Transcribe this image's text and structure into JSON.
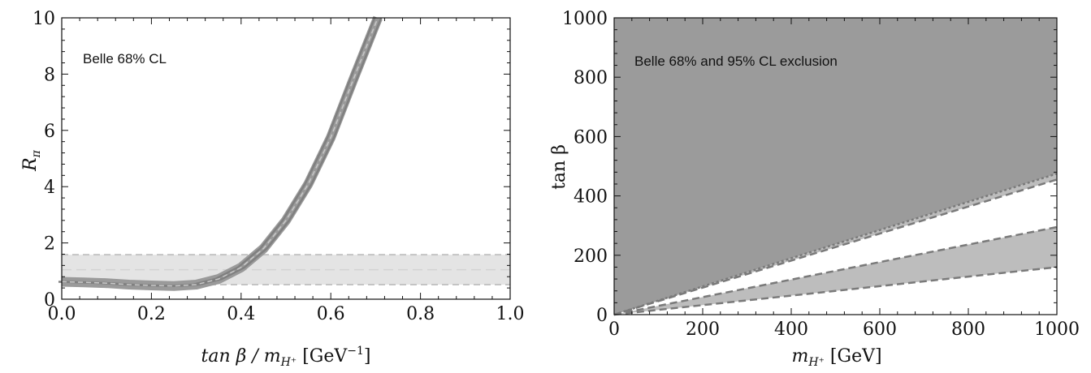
{
  "chart_data": [
    {
      "type": "line",
      "annotation": "Belle  68% CL",
      "xlabel": "tan β / m",
      "xlabel_sub": "H⁺",
      "xlabel_unit": " [GeV",
      "xlabel_unit_sup": "−1",
      "xlabel_close": "]",
      "ylabel": "R",
      "ylabel_sub": "π",
      "xlim": [
        0,
        1
      ],
      "ylim": [
        0,
        10
      ],
      "xticks": [
        "0.0",
        "0.2",
        "0.4",
        "0.6",
        "0.8",
        "1.0"
      ],
      "xtick_values": [
        0,
        0.2,
        0.4,
        0.6,
        0.8,
        1.0
      ],
      "yticks": [
        "0",
        "2",
        "4",
        "6",
        "8",
        "10"
      ],
      "ytick_values": [
        0,
        2,
        4,
        6,
        8,
        10
      ],
      "band": {
        "lower": 0.52,
        "central": 1.05,
        "upper": 1.58
      },
      "curve": {
        "x": [
          0.0,
          0.05,
          0.1,
          0.15,
          0.2,
          0.25,
          0.3,
          0.35,
          0.4,
          0.45,
          0.5,
          0.55,
          0.6,
          0.65,
          0.7,
          0.705
        ],
        "y": [
          0.62,
          0.6,
          0.57,
          0.52,
          0.49,
          0.47,
          0.52,
          0.72,
          1.13,
          1.8,
          2.8,
          4.1,
          5.75,
          7.8,
          9.8,
          10.0
        ],
        "band_width": 0.12
      },
      "colors": {
        "curve": "#808080",
        "curve_band": "#9a9a9a",
        "band_fill": "#e4e4e4",
        "band_edge": "#c4c4c4",
        "central_dash": "#d2d2d2"
      }
    },
    {
      "type": "area",
      "annotation": "Belle 68% and 95% CL exclusion",
      "xlabel": "m",
      "xlabel_sub": "H⁺",
      "xlabel_unit": " [GeV]",
      "ylabel": "tan β",
      "xlim": [
        0,
        1000
      ],
      "ylim": [
        0,
        1000
      ],
      "xticks": [
        "0",
        "200",
        "400",
        "600",
        "800",
        "1000"
      ],
      "xtick_values": [
        0,
        200,
        400,
        600,
        800,
        1000
      ],
      "yticks": [
        "0",
        "200",
        "400",
        "600",
        "800",
        "1000"
      ],
      "ytick_values": [
        0,
        200,
        400,
        600,
        800,
        1000
      ],
      "regions": [
        {
          "kind": "excluded-95",
          "slope_upper": null,
          "slope_lower": 0.475,
          "color": "#9b9b9b"
        },
        {
          "kind": "excluded-68",
          "slope_upper": 0.475,
          "slope_lower": 0.455,
          "color": "#bdbdbd"
        },
        {
          "kind": "excluded-68",
          "slope_upper": 0.295,
          "slope_lower": 0.16,
          "color": "#bdbdbd"
        }
      ],
      "boundary_lines": [
        0.475,
        0.455,
        0.295,
        0.16
      ],
      "colors": {
        "line": "#7a7a7a",
        "dark": "#9b9b9b",
        "light": "#bdbdbd"
      }
    }
  ]
}
